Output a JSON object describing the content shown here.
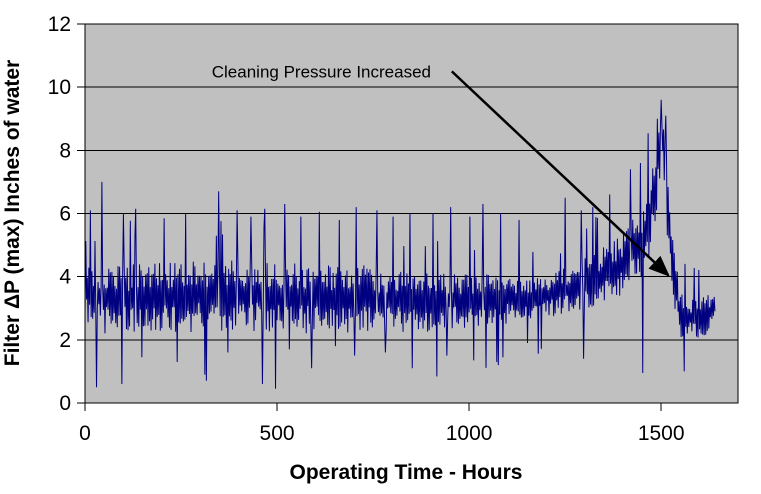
{
  "chart_data": {
    "type": "line",
    "title": "",
    "xlabel": "Operating Time - Hours",
    "ylabel": "Filter ΔP (max) Inches of water",
    "xlim": [
      0,
      1700
    ],
    "ylim": [
      0,
      12
    ],
    "xticks": [
      0,
      500,
      1000,
      1500
    ],
    "yticks": [
      0,
      2,
      4,
      6,
      8,
      10,
      12
    ],
    "grid": "horizontal-major",
    "legend": "none",
    "plot_bg_color": "#c0c0c0",
    "line_color": "#000080",
    "grid_color": "#000000",
    "series_name": "Filter dP (max)",
    "sampling_step_hours": 2,
    "t_start": 0,
    "t_end": 1640,
    "seed": 13,
    "envelope_profile": [
      [
        0,
        3.5,
        1.0
      ],
      [
        50,
        3.3,
        1.1
      ],
      [
        150,
        3.3,
        1.1
      ],
      [
        300,
        3.4,
        1.15
      ],
      [
        450,
        3.4,
        1.15
      ],
      [
        600,
        3.3,
        1.1
      ],
      [
        750,
        3.3,
        1.05
      ],
      [
        900,
        3.2,
        0.95
      ],
      [
        1000,
        3.25,
        0.85
      ],
      [
        1100,
        3.3,
        0.8
      ],
      [
        1180,
        3.35,
        0.7
      ],
      [
        1260,
        3.6,
        0.75
      ],
      [
        1330,
        3.9,
        0.85
      ],
      [
        1400,
        4.4,
        1.0
      ],
      [
        1450,
        5.1,
        1.1
      ],
      [
        1475,
        6.2,
        1.3
      ],
      [
        1495,
        8.0,
        1.3
      ],
      [
        1505,
        8.6,
        0.9
      ],
      [
        1518,
        5.8,
        1.1
      ],
      [
        1532,
        4.0,
        1.0
      ],
      [
        1548,
        2.9,
        0.8
      ],
      [
        1578,
        2.7,
        0.75
      ],
      [
        1612,
        2.7,
        0.7
      ],
      [
        1640,
        3.1,
        0.4
      ]
    ],
    "spikes_up": [
      [
        14,
        6.1
      ],
      [
        44,
        7.0
      ],
      [
        100,
        6.0
      ],
      [
        132,
        6.15
      ],
      [
        205,
        5.85
      ],
      [
        262,
        6.0
      ],
      [
        348,
        6.7
      ],
      [
        396,
        6.1
      ],
      [
        432,
        5.9
      ],
      [
        468,
        6.15
      ],
      [
        520,
        6.3
      ],
      [
        562,
        5.9
      ],
      [
        610,
        6.05
      ],
      [
        662,
        5.8
      ],
      [
        706,
        6.2
      ],
      [
        760,
        6.1
      ],
      [
        802,
        5.9
      ],
      [
        846,
        6.0
      ],
      [
        906,
        6.0
      ],
      [
        952,
        6.2
      ],
      [
        1002,
        5.9
      ],
      [
        1036,
        6.3
      ],
      [
        1082,
        6.0
      ],
      [
        1130,
        5.8
      ],
      [
        1250,
        6.5
      ],
      [
        1292,
        6.1
      ],
      [
        1322,
        6.2
      ],
      [
        1366,
        6.6
      ],
      [
        1420,
        7.4
      ],
      [
        1446,
        7.6
      ],
      [
        1490,
        9.0
      ],
      [
        1500,
        9.6
      ],
      [
        1512,
        9.1
      ]
    ],
    "spikes_down": [
      [
        30,
        0.5
      ],
      [
        96,
        0.6
      ],
      [
        148,
        1.45
      ],
      [
        240,
        1.3
      ],
      [
        312,
        0.9
      ],
      [
        372,
        1.6
      ],
      [
        462,
        0.6
      ],
      [
        532,
        1.7
      ],
      [
        590,
        1.1
      ],
      [
        652,
        1.8
      ],
      [
        702,
        1.5
      ],
      [
        782,
        1.6
      ],
      [
        852,
        1.1
      ],
      [
        942,
        1.5
      ],
      [
        1012,
        1.35
      ],
      [
        1076,
        1.2
      ],
      [
        1152,
        1.9
      ],
      [
        1298,
        1.4
      ],
      [
        1452,
        0.95
      ],
      [
        1560,
        1.0
      ]
    ],
    "noise": {
      "up_prob": 0.05,
      "up_scale": [
        1.6,
        2.4
      ],
      "down_prob": 0.03,
      "down_scale": [
        1.8,
        2.8
      ],
      "base_mag": [
        0.2,
        1.0
      ],
      "clamp": [
        0.45,
        11.6
      ]
    },
    "notable_values": {
      "peak": {
        "t": 1500,
        "value": 9.6
      },
      "typical_band_before": [
        2.2,
        4.6
      ],
      "typical_band_after_drop": [
        1.9,
        4.2
      ],
      "minimum_dip": 0.5
    },
    "annotation": {
      "text": "Cleaning Pressure Increased",
      "text_anchor": {
        "t": 330,
        "v": 10.3
      },
      "arrow_from": {
        "t": 955,
        "v": 10.5
      },
      "arrow_to": {
        "t": 1518,
        "v": 4.05
      }
    }
  }
}
